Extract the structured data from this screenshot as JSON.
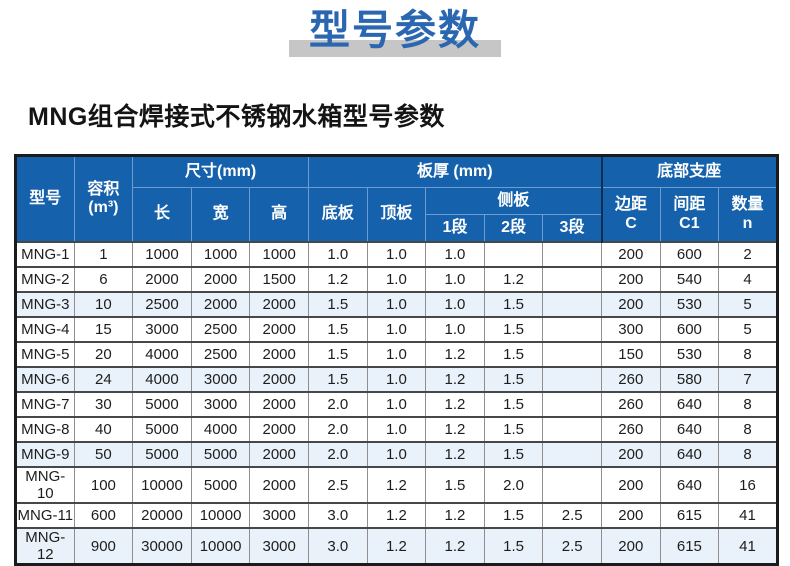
{
  "page": {
    "title": "型号参数",
    "subtitle": "MNG组合焊接式不锈钢水箱型号参数"
  },
  "colors": {
    "header_blue": "#1561ac",
    "title_blue": "#2b67b1",
    "title_band_gray": "#c6c6c6",
    "row_tint": "#e9f2fa"
  },
  "table": {
    "header": {
      "model": "型号",
      "volume_line1": "容积",
      "volume_line2": "(m³)",
      "size_group": "尺寸(mm)",
      "length": "长",
      "width": "宽",
      "height": "高",
      "thickness_group": "板厚 (mm)",
      "bottom_plate": "底板",
      "top_plate": "顶板",
      "side_plate_group": "侧板",
      "seg1": "1段",
      "seg2": "2段",
      "seg3": "3段",
      "support_group": "底部支座",
      "edge_line1": "边距",
      "edge_line2": "C",
      "spacing_line1": "间距",
      "spacing_line2": "C1",
      "qty_line1": "数量",
      "qty_line2": "n"
    },
    "rows": [
      {
        "tinted": false,
        "cells": [
          "MNG-1",
          "1",
          "1000",
          "1000",
          "1000",
          "1.0",
          "1.0",
          "1.0",
          "",
          "",
          "200",
          "600",
          "2"
        ]
      },
      {
        "tinted": false,
        "cells": [
          "MNG-2",
          "6",
          "2000",
          "2000",
          "1500",
          "1.2",
          "1.0",
          "1.0",
          "1.2",
          "",
          "200",
          "540",
          "4"
        ]
      },
      {
        "tinted": true,
        "cells": [
          "MNG-3",
          "10",
          "2500",
          "2000",
          "2000",
          "1.5",
          "1.0",
          "1.0",
          "1.5",
          "",
          "200",
          "530",
          "5"
        ]
      },
      {
        "tinted": false,
        "cells": [
          "MNG-4",
          "15",
          "3000",
          "2500",
          "2000",
          "1.5",
          "1.0",
          "1.0",
          "1.5",
          "",
          "300",
          "600",
          "5"
        ]
      },
      {
        "tinted": false,
        "cells": [
          "MNG-5",
          "20",
          "4000",
          "2500",
          "2000",
          "1.5",
          "1.0",
          "1.2",
          "1.5",
          "",
          "150",
          "530",
          "8"
        ]
      },
      {
        "tinted": true,
        "cells": [
          "MNG-6",
          "24",
          "4000",
          "3000",
          "2000",
          "1.5",
          "1.0",
          "1.2",
          "1.5",
          "",
          "260",
          "580",
          "7"
        ]
      },
      {
        "tinted": false,
        "cells": [
          "MNG-7",
          "30",
          "5000",
          "3000",
          "2000",
          "2.0",
          "1.0",
          "1.2",
          "1.5",
          "",
          "260",
          "640",
          "8"
        ]
      },
      {
        "tinted": false,
        "cells": [
          "MNG-8",
          "40",
          "5000",
          "4000",
          "2000",
          "2.0",
          "1.0",
          "1.2",
          "1.5",
          "",
          "260",
          "640",
          "8"
        ]
      },
      {
        "tinted": true,
        "cells": [
          "MNG-9",
          "50",
          "5000",
          "5000",
          "2000",
          "2.0",
          "1.0",
          "1.2",
          "1.5",
          "",
          "200",
          "640",
          "8"
        ]
      },
      {
        "tinted": false,
        "cells": [
          "MNG-10",
          "100",
          "10000",
          "5000",
          "2000",
          "2.5",
          "1.2",
          "1.5",
          "2.0",
          "",
          "200",
          "640",
          "16"
        ]
      },
      {
        "tinted": false,
        "cells": [
          "MNG-11",
          "600",
          "20000",
          "10000",
          "3000",
          "3.0",
          "1.2",
          "1.2",
          "1.5",
          "2.5",
          "200",
          "615",
          "41"
        ]
      },
      {
        "tinted": true,
        "cells": [
          "MNG-12",
          "900",
          "30000",
          "10000",
          "3000",
          "3.0",
          "1.2",
          "1.2",
          "1.5",
          "2.5",
          "200",
          "615",
          "41"
        ]
      }
    ]
  }
}
